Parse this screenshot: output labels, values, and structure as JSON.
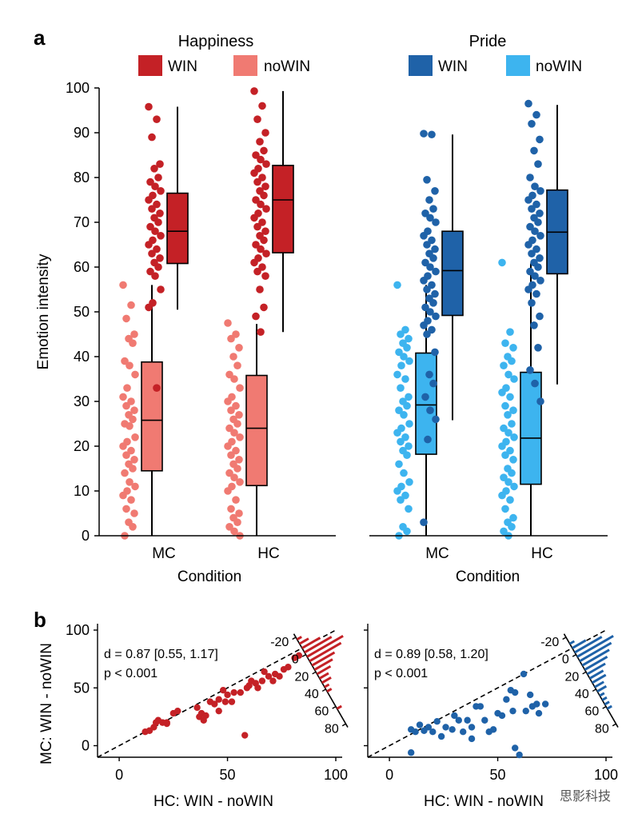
{
  "panel_a_letter": "a",
  "panel_b_letter": "b",
  "chart_data": [
    {
      "type": "boxplot",
      "title": "Happiness",
      "legend": [
        {
          "label": "WIN",
          "color": "#C42126"
        },
        {
          "label": "noWIN",
          "color": "#F07A72"
        }
      ],
      "xlabel": "Condition",
      "ylabel": "Emotion intensity",
      "categories": [
        "MC",
        "HC"
      ],
      "ylim": [
        0,
        100
      ],
      "yticks": [
        0,
        10,
        20,
        30,
        40,
        50,
        60,
        70,
        80,
        90,
        100
      ],
      "boxes": [
        {
          "category": "MC",
          "series": "noWIN",
          "color": "#F07A72",
          "whislo": 0,
          "q1": 14.5,
          "med": 25.8,
          "q3": 38.8,
          "whishi": 56,
          "points": [
            56,
            51.5,
            48.5,
            45,
            44,
            43,
            39,
            38,
            36,
            33,
            31,
            30,
            29,
            28,
            27,
            26,
            25,
            24.5,
            22,
            21,
            20,
            19,
            18,
            17,
            16,
            15,
            14,
            12,
            11,
            10,
            9,
            8,
            6,
            5,
            3,
            2,
            0
          ]
        },
        {
          "category": "MC",
          "series": "WIN",
          "color": "#C42126",
          "whislo": 50.5,
          "q1": 60.8,
          "med": 68,
          "q3": 76.5,
          "whishi": 95.8,
          "points": [
            95.8,
            93,
            89,
            83,
            82,
            80,
            79,
            78,
            77,
            76,
            75,
            74,
            73,
            72,
            71,
            70,
            69,
            68,
            67,
            66,
            65,
            64,
            63,
            62,
            61,
            60,
            59,
            58,
            55,
            52,
            51,
            33
          ]
        },
        {
          "category": "HC",
          "series": "noWIN",
          "color": "#F07A72",
          "whislo": 0,
          "q1": 11.2,
          "med": 24,
          "q3": 35.8,
          "whishi": 47.3,
          "points": [
            47.5,
            45,
            44,
            42,
            40,
            38,
            36,
            35,
            33,
            31,
            30,
            29,
            28,
            27,
            26,
            25,
            24,
            23,
            22,
            21,
            20,
            19,
            18,
            17,
            16,
            15,
            14,
            13,
            12,
            11,
            10,
            8,
            6,
            5,
            4,
            3,
            2,
            1,
            0
          ]
        },
        {
          "category": "HC",
          "series": "WIN",
          "color": "#C42126",
          "whislo": 45.5,
          "q1": 63.2,
          "med": 75,
          "q3": 82.7,
          "whishi": 99.3,
          "points": [
            99.3,
            96,
            93,
            90,
            88,
            86,
            85,
            84,
            83,
            82,
            81,
            80,
            79,
            78,
            77,
            76,
            75,
            74,
            73,
            72,
            71,
            70,
            69,
            68,
            67,
            66,
            65,
            64,
            63,
            62,
            61,
            60,
            59,
            58,
            55,
            51,
            49,
            45.5
          ]
        }
      ]
    },
    {
      "type": "boxplot",
      "title": "Pride",
      "legend": [
        {
          "label": "WIN",
          "color": "#1F62A8"
        },
        {
          "label": "noWIN",
          "color": "#3DB4EF"
        }
      ],
      "xlabel": "Condition",
      "ylabel": "",
      "categories": [
        "MC",
        "HC"
      ],
      "ylim": [
        0,
        100
      ],
      "boxes": [
        {
          "category": "MC",
          "series": "noWIN",
          "color": "#3DB4EF",
          "whislo": 0,
          "q1": 18.2,
          "med": 29.2,
          "q3": 40.8,
          "whishi": 56,
          "points": [
            56,
            46,
            45,
            44,
            43,
            42,
            41,
            40,
            39,
            38,
            36,
            35,
            33,
            31,
            30,
            29,
            28,
            27,
            25,
            24,
            23,
            22,
            21,
            20,
            19,
            18,
            16,
            14,
            12,
            11,
            10,
            9,
            8,
            6,
            2,
            1,
            0
          ]
        },
        {
          "category": "MC",
          "series": "WIN",
          "color": "#1F62A8",
          "whislo": 25.8,
          "q1": 49.2,
          "med": 59.2,
          "q3": 68,
          "whishi": 89.6,
          "points": [
            89.8,
            89.6,
            79.5,
            77,
            75,
            73,
            72,
            71,
            70,
            68,
            67,
            66,
            65,
            64,
            63,
            62,
            61,
            60,
            59,
            58,
            57,
            56,
            55,
            54,
            53,
            52,
            51,
            50,
            49,
            48,
            47,
            46,
            45,
            41,
            36,
            34,
            31,
            28,
            26,
            21.5,
            3
          ]
        },
        {
          "category": "HC",
          "series": "noWIN",
          "color": "#3DB4EF",
          "whislo": 0,
          "q1": 11.5,
          "med": 21.8,
          "q3": 36.5,
          "whishi": 60.8,
          "points": [
            61,
            45.5,
            43,
            42,
            40,
            39,
            38,
            36,
            35,
            33,
            32,
            31,
            29,
            28,
            27,
            25,
            24,
            23,
            22,
            21,
            20,
            19,
            18,
            17,
            15,
            14,
            13,
            12,
            11,
            10,
            9,
            8,
            6,
            4,
            3,
            2,
            1,
            0
          ]
        },
        {
          "category": "HC",
          "series": "WIN",
          "color": "#1F62A8",
          "whislo": 33.8,
          "q1": 58.5,
          "med": 67.8,
          "q3": 77.2,
          "whishi": 96.2,
          "points": [
            96.5,
            94,
            92,
            88.5,
            86,
            83,
            80,
            78,
            77,
            76,
            75,
            74,
            73,
            72,
            71,
            70,
            69,
            68,
            67,
            66,
            65,
            64,
            63,
            62,
            61,
            60,
            59,
            58,
            57,
            56,
            55,
            54,
            52,
            49,
            47,
            42,
            37,
            34,
            30
          ]
        }
      ]
    },
    {
      "type": "scatter",
      "color": "#C42126",
      "xlabel": "HC: WIN - noWIN",
      "ylabel": "MC: WIN - noWIN",
      "xlim": [
        -10,
        100
      ],
      "ylim": [
        -10,
        100
      ],
      "xticks": [
        0,
        50,
        100
      ],
      "yticks": [
        0,
        50,
        100
      ],
      "identity_line": true,
      "stat_d": "d = 0.87 [0.55, 1.17]",
      "stat_p": "p < 0.001",
      "histogram_ticks": [
        -20,
        0,
        20,
        40,
        60,
        80
      ],
      "histogram_counts": [
        1,
        2,
        4,
        6,
        8,
        7,
        5,
        4,
        3,
        2,
        2,
        1,
        1,
        0,
        0,
        0,
        1,
        0,
        0,
        0
      ],
      "points": [
        [
          12,
          12
        ],
        [
          14,
          13
        ],
        [
          16,
          16
        ],
        [
          17,
          20
        ],
        [
          18,
          22
        ],
        [
          20,
          20
        ],
        [
          22,
          20
        ],
        [
          22,
          19
        ],
        [
          25,
          28
        ],
        [
          27,
          30
        ],
        [
          36,
          33
        ],
        [
          37,
          25
        ],
        [
          38,
          28
        ],
        [
          39,
          22
        ],
        [
          40,
          26
        ],
        [
          42,
          38
        ],
        [
          44,
          36
        ],
        [
          46,
          30
        ],
        [
          46,
          40
        ],
        [
          48,
          48
        ],
        [
          49,
          38
        ],
        [
          50,
          44
        ],
        [
          52,
          38
        ],
        [
          53,
          46
        ],
        [
          56,
          46
        ],
        [
          58,
          9
        ],
        [
          59,
          50
        ],
        [
          60,
          52
        ],
        [
          61,
          56
        ],
        [
          63,
          54
        ],
        [
          64,
          50
        ],
        [
          66,
          56
        ],
        [
          67,
          64
        ],
        [
          69,
          60
        ],
        [
          71,
          56
        ],
        [
          72,
          62
        ],
        [
          74,
          60
        ],
        [
          76,
          66
        ],
        [
          78,
          68
        ],
        [
          81,
          76
        ],
        [
          83,
          78
        ]
      ]
    },
    {
      "type": "scatter",
      "color": "#1F62A8",
      "xlabel": "HC: WIN - noWIN",
      "ylabel": "",
      "xlim": [
        -10,
        100
      ],
      "ylim": [
        -10,
        100
      ],
      "xticks": [
        0,
        50,
        100
      ],
      "identity_line": true,
      "stat_d": "d = 0.89 [0.58, 1.20]",
      "stat_p": "p < 0.001",
      "histogram_ticks": [
        -20,
        0,
        20,
        40,
        60,
        80
      ],
      "histogram_counts": [
        0,
        1,
        3,
        6,
        8,
        7,
        6,
        5,
        4,
        3,
        3,
        2,
        2,
        1,
        1,
        1,
        1,
        0,
        0,
        0
      ],
      "points": [
        [
          10,
          -6
        ],
        [
          10,
          14
        ],
        [
          12,
          12
        ],
        [
          14,
          18
        ],
        [
          16,
          13
        ],
        [
          18,
          16
        ],
        [
          20,
          12
        ],
        [
          22,
          21
        ],
        [
          24,
          8
        ],
        [
          26,
          16
        ],
        [
          29,
          14
        ],
        [
          30,
          26
        ],
        [
          32,
          22
        ],
        [
          34,
          12
        ],
        [
          36,
          22
        ],
        [
          38,
          6
        ],
        [
          38,
          16
        ],
        [
          40,
          34
        ],
        [
          42,
          34
        ],
        [
          44,
          22
        ],
        [
          46,
          12
        ],
        [
          48,
          14
        ],
        [
          50,
          28
        ],
        [
          52,
          26
        ],
        [
          54,
          40
        ],
        [
          56,
          48
        ],
        [
          57,
          30
        ],
        [
          58,
          46
        ],
        [
          58,
          -2
        ],
        [
          60,
          -8
        ],
        [
          62,
          62
        ],
        [
          63,
          30
        ],
        [
          65,
          44
        ],
        [
          66,
          34
        ],
        [
          68,
          36
        ],
        [
          69,
          28
        ],
        [
          72,
          36
        ]
      ]
    }
  ],
  "watermark": "思影科技"
}
